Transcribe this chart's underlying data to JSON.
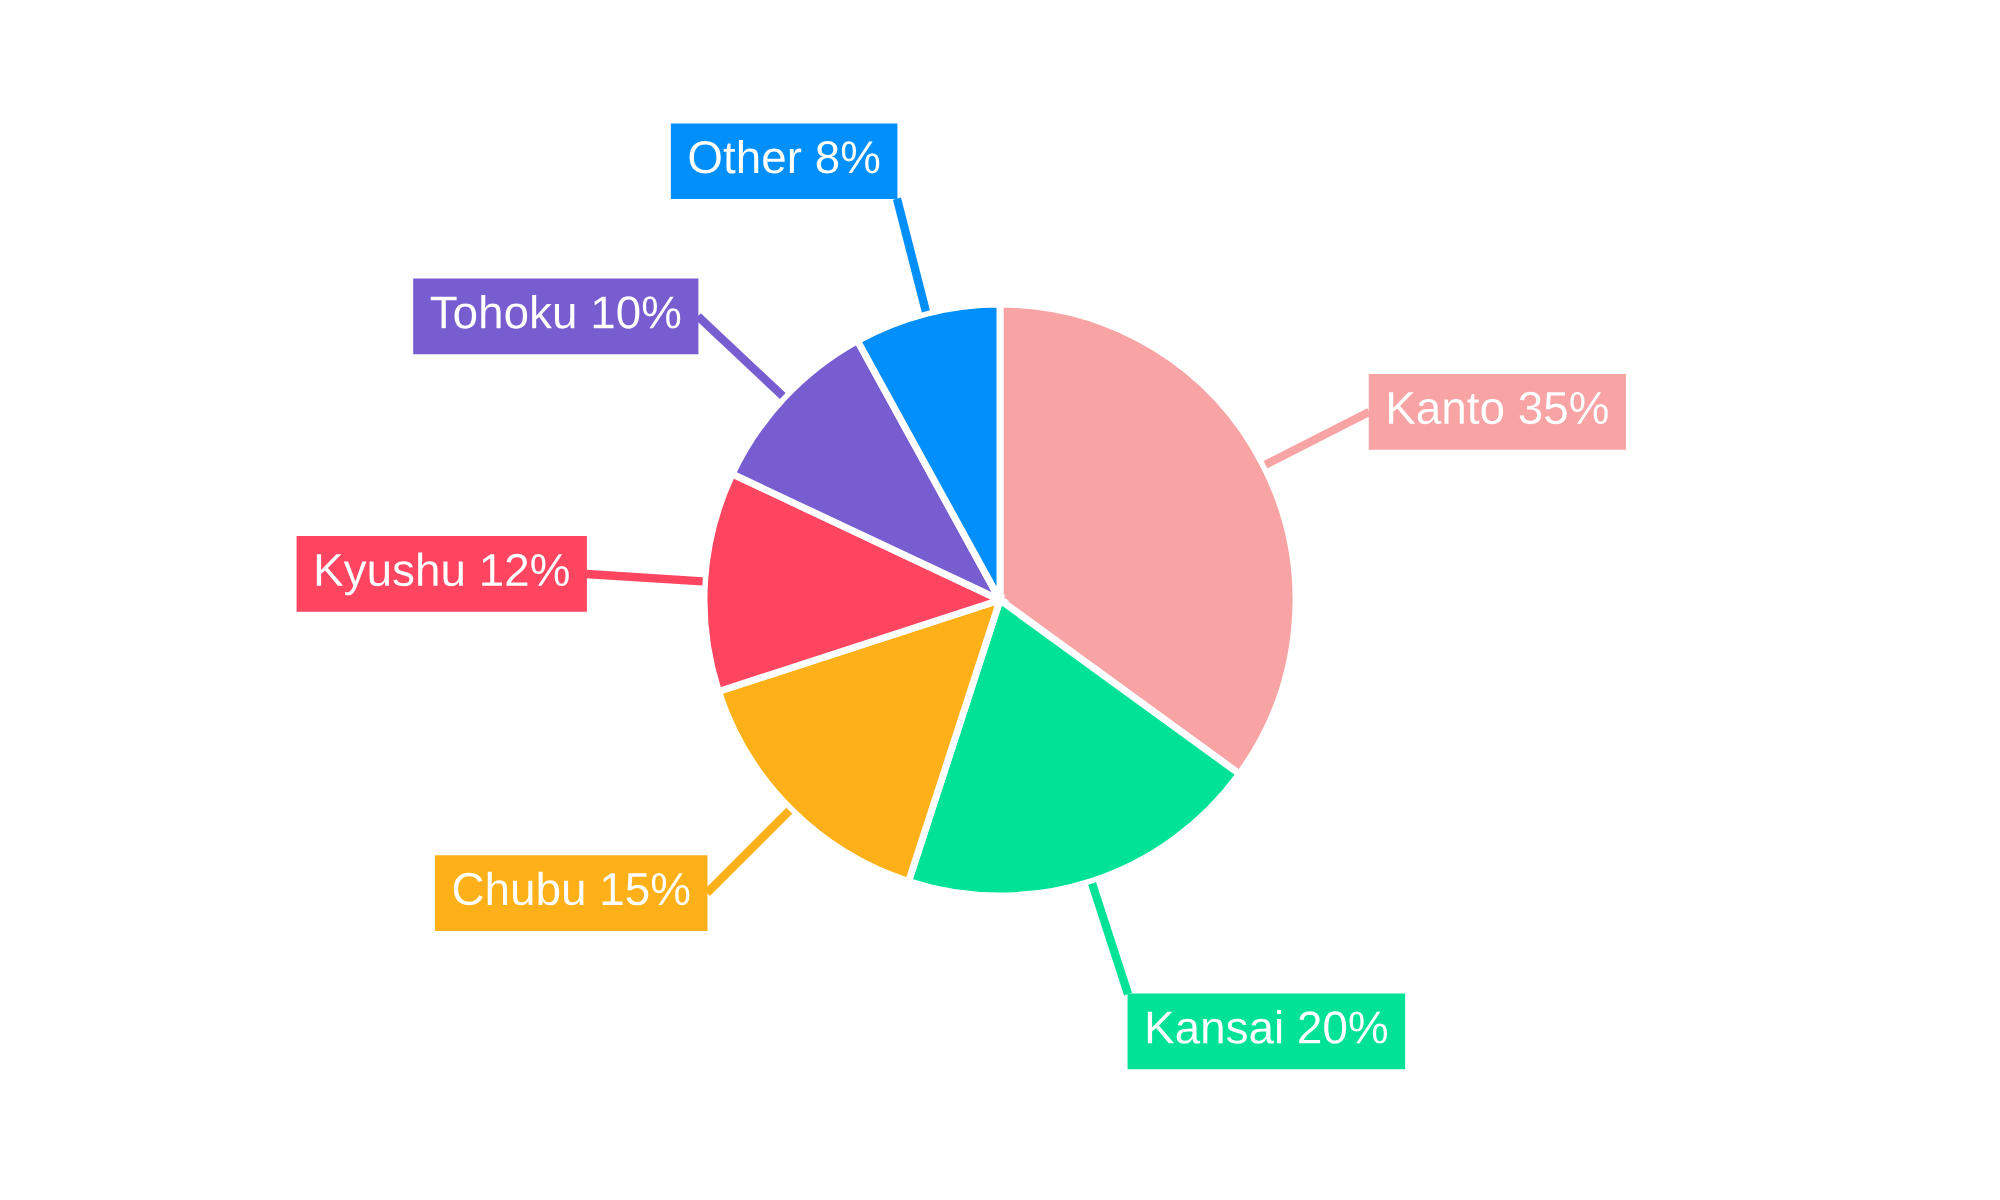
{
  "chart_data": {
    "type": "pie",
    "categories": [
      "Kanto",
      "Kansai",
      "Chubu",
      "Kyushu",
      "Tohoku",
      "Other"
    ],
    "values": [
      35,
      20,
      15,
      12,
      10,
      8
    ],
    "colors": [
      "#f8a3a4",
      "#00e396",
      "#feb019",
      "#ff4560",
      "#775dd0",
      "#008ffb"
    ],
    "value_labels": [
      "35%",
      "20%",
      "15%",
      "12%",
      "10%",
      "8%"
    ]
  }
}
